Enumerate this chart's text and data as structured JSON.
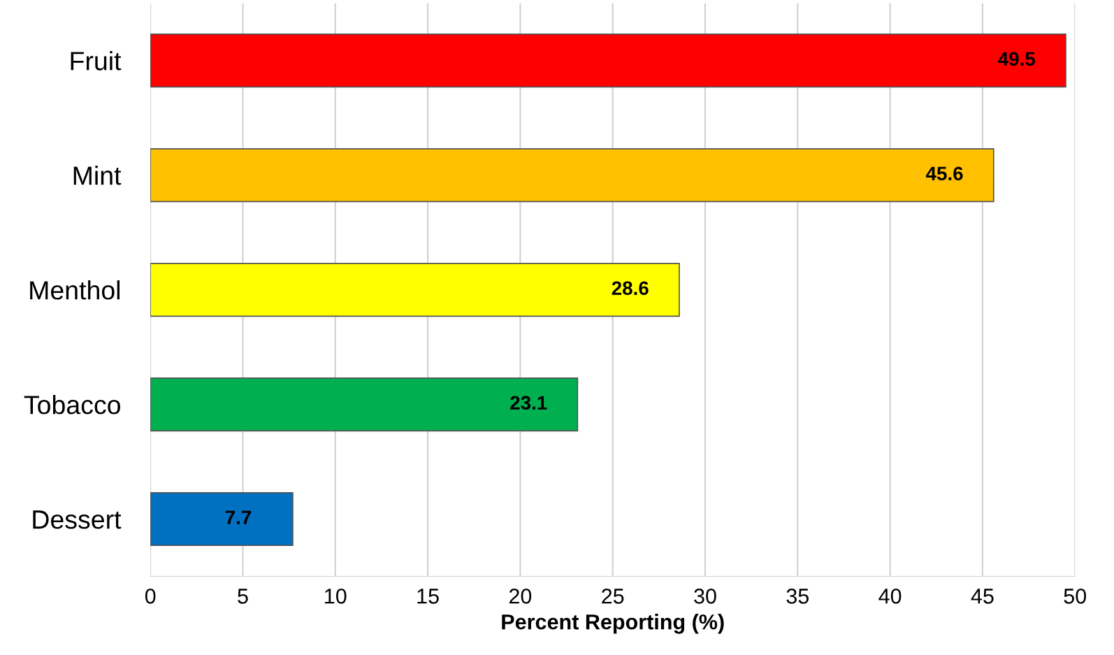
{
  "chart_data": {
    "type": "bar",
    "orientation": "horizontal",
    "categories": [
      "Fruit",
      "Mint",
      "Menthol",
      "Tobacco",
      "Dessert"
    ],
    "values": [
      49.5,
      45.6,
      28.6,
      23.1,
      7.7
    ],
    "colors": [
      "#ff0000",
      "#ffc000",
      "#ffff00",
      "#00b050",
      "#0070c0"
    ],
    "xlabel": "Percent Reporting (%)",
    "xlim": [
      0,
      50
    ],
    "xticks": [
      0,
      5,
      10,
      15,
      20,
      25,
      30,
      35,
      40,
      45,
      50
    ],
    "grid": "x",
    "data_labels": true
  }
}
